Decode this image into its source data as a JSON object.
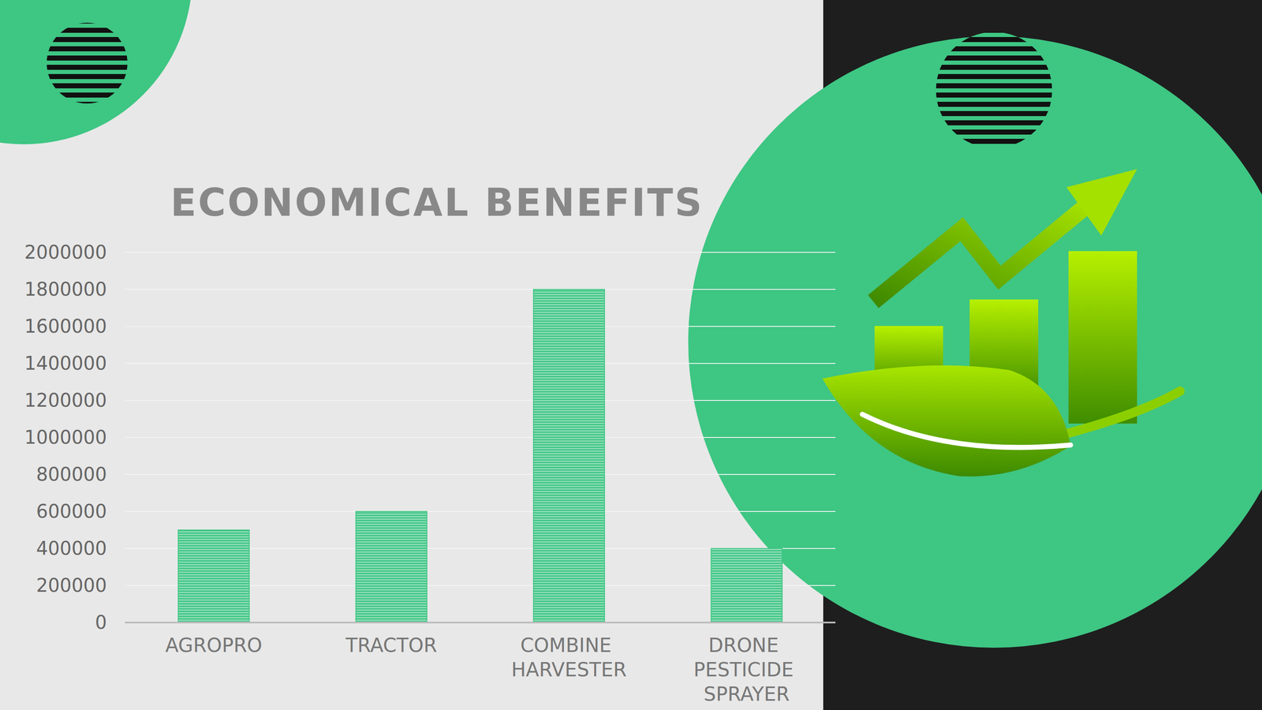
{
  "chart_data": {
    "type": "bar",
    "title": "ECONOMICAL BENEFITS",
    "categories": [
      "AGROPRO",
      "TRACTOR",
      "COMBINE HARVESTER",
      "DRONE PESTICIDE SPRAYER"
    ],
    "values": [
      500000,
      600000,
      1800000,
      400000
    ],
    "color": "#3ec683",
    "ylim": [
      0,
      2000000
    ],
    "yticks": [
      0,
      200000,
      400000,
      600000,
      800000,
      1000000,
      1200000,
      1400000,
      1600000,
      1800000,
      2000000
    ],
    "grid": true
  }
}
